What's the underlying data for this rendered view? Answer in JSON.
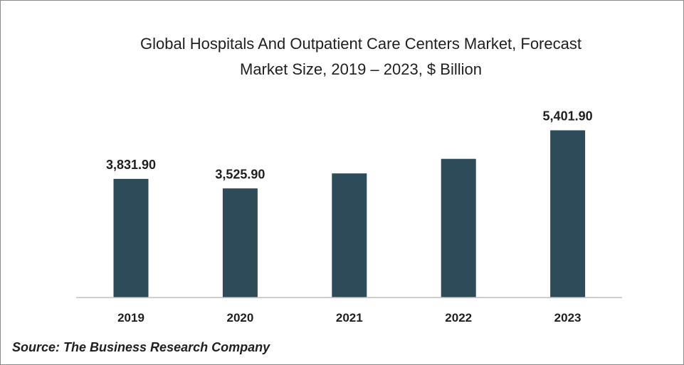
{
  "chart_data": {
    "type": "bar",
    "title_line1": "Global Hospitals And Outpatient Care Centers Market, Forecast",
    "title_line2": "Market Size, 2019 – 2023, $ Billion",
    "categories": [
      "2019",
      "2020",
      "2021",
      "2022",
      "2023"
    ],
    "values": [
      3831.9,
      3525.9,
      4010,
      4480,
      5401.9
    ],
    "data_labels": [
      "3,831.90",
      "3,525.90",
      "",
      "",
      "5,401.90"
    ],
    "ylim": [
      0,
      6000
    ],
    "grid": false,
    "legend": "none",
    "bar_color": "#2d4b59",
    "axis_color": "#bfbfbf"
  },
  "source": "Source: The Business Research Company"
}
